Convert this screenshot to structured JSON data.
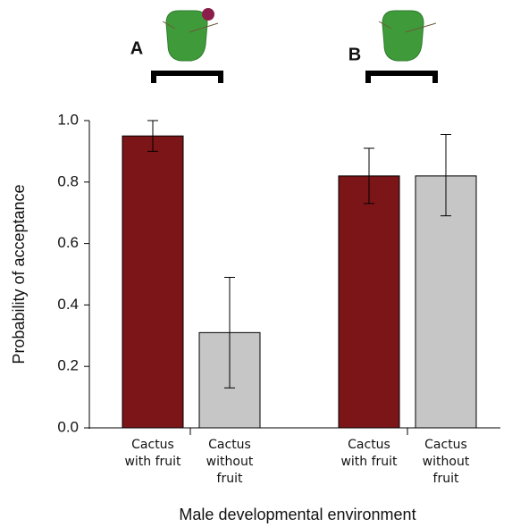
{
  "chart_data": {
    "type": "bar",
    "ylabel": "Probability of acceptance",
    "xlabel": "Male developmental environment",
    "groups": [
      "A",
      "B"
    ],
    "categories": [
      "Cactus with fruit",
      "Cactus without fruit",
      "Cactus with fruit",
      "Cactus without fruit"
    ],
    "values": [
      0.95,
      0.31,
      0.82,
      0.82
    ],
    "lower": [
      0.9,
      0.13,
      0.73,
      0.69
    ],
    "upper": [
      1.0,
      0.49,
      0.91,
      0.955
    ],
    "colors": [
      "#7c1517",
      "#c6c6c6",
      "#7c1517",
      "#c6c6c6"
    ],
    "ylim": [
      0,
      1.0
    ],
    "yticks": [
      {
        "value": 0,
        "label": "0.0"
      },
      0.2,
      0.4,
      0.6,
      0.8,
      {
        "value": 1.0,
        "label": "1.0"
      }
    ]
  }
}
